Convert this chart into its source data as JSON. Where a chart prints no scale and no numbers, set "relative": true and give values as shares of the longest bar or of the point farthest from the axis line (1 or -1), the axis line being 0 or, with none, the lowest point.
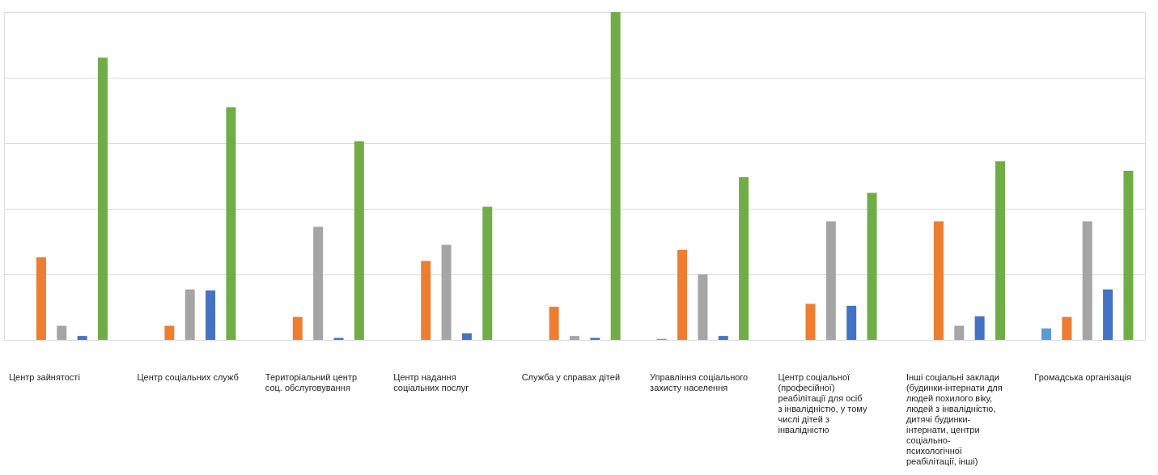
{
  "chart_data": {
    "type": "bar",
    "relative": true,
    "grid": "y",
    "categories": [
      "Центр зайнятості",
      "Центр соціальних служб",
      "Територіальний центр соц. обслуговування",
      "Центр надання соціальних послуг",
      "Служба у справах дітей",
      "Управління соціального захисту населення",
      "Центр соціальної (професійної) реабілітації для осіб з інвалідністю, у тому числі дітей з інвалідністю",
      "Інші соціальні заклади (будинки-інтернати для людей похилого віку, людей з інвалідністю, дитячі будинки-інтернати, центри соціально-психологічної реабілітації, інші)",
      "Громадська організація"
    ],
    "series": [
      {
        "color": "#5b9bd5",
        "values": [
          null,
          null,
          null,
          null,
          null,
          0.003,
          null,
          null,
          0.035
        ]
      },
      {
        "color": "#ed7d31",
        "values": [
          0.252,
          0.043,
          0.07,
          0.241,
          0.101,
          0.275,
          0.11,
          0.362,
          0.07
        ]
      },
      {
        "color": "#a5a5a5",
        "values": [
          0.043,
          0.154,
          0.345,
          0.29,
          0.012,
          0.2,
          0.362,
          0.043,
          0.362
        ]
      },
      {
        "color": "#4472c4",
        "values": [
          0.012,
          0.151,
          0.006,
          0.02,
          0.006,
          0.012,
          0.104,
          0.072,
          0.154
        ]
      },
      {
        "color": "#70ad47",
        "values": [
          0.861,
          0.71,
          0.606,
          0.406,
          1,
          0.496,
          0.449,
          0.545,
          0.516
        ]
      }
    ]
  }
}
